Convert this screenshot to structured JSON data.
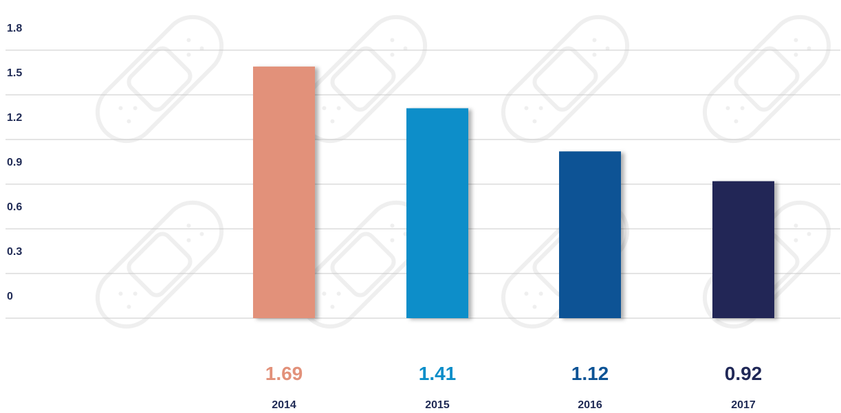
{
  "chart_data": {
    "type": "bar",
    "categories": [
      "2014",
      "2015",
      "2016",
      "2017"
    ],
    "values": [
      1.69,
      1.41,
      1.12,
      0.92
    ],
    "value_labels": [
      "1.69",
      "1.41",
      "1.12",
      "0.92"
    ],
    "colors": [
      "#e2917a",
      "#0a8ec9",
      "#0c5395",
      "#202857"
    ],
    "yticks": [
      "0",
      "0.3",
      "0.6",
      "0.9",
      "1.2",
      "1.5",
      "1.8"
    ],
    "ylim": [
      0,
      1.8
    ],
    "grid": true,
    "title": "",
    "xlabel": "",
    "ylabel": ""
  },
  "background_motif": "bandage-icon"
}
